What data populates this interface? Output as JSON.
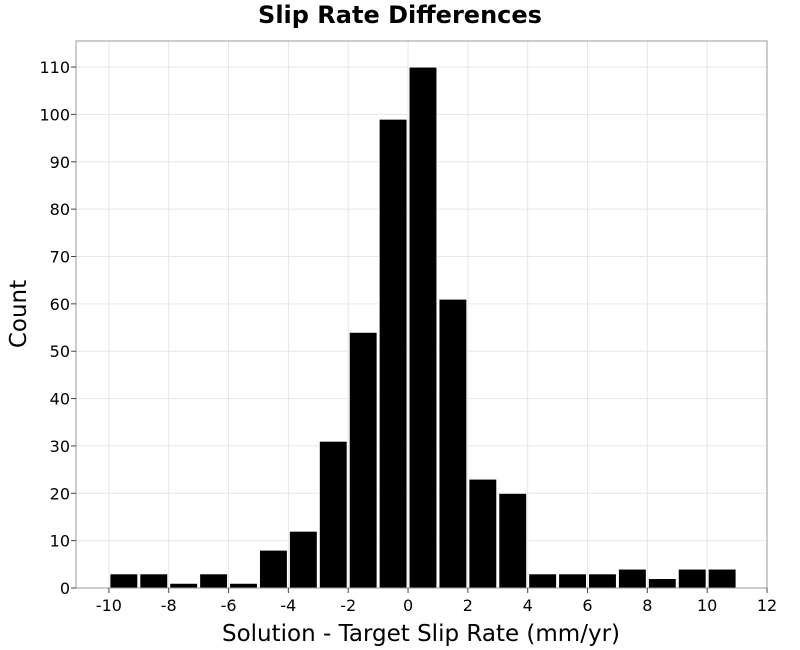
{
  "chart_data": {
    "type": "bar",
    "title": "Slip Rate Differences",
    "xlabel": "Solution - Target Slip Rate (mm/yr)",
    "ylabel": "Count",
    "bin_width": 1,
    "bins": [
      {
        "x_start": -10,
        "x_end": -9,
        "value": 3
      },
      {
        "x_start": -9,
        "x_end": -8,
        "value": 3
      },
      {
        "x_start": -8,
        "x_end": -7,
        "value": 1
      },
      {
        "x_start": -7,
        "x_end": -6,
        "value": 3
      },
      {
        "x_start": -6,
        "x_end": -5,
        "value": 1
      },
      {
        "x_start": -5,
        "x_end": -4,
        "value": 8
      },
      {
        "x_start": -4,
        "x_end": -3,
        "value": 12
      },
      {
        "x_start": -3,
        "x_end": -2,
        "value": 31
      },
      {
        "x_start": -2,
        "x_end": -1,
        "value": 54
      },
      {
        "x_start": -1,
        "x_end": 0,
        "value": 99
      },
      {
        "x_start": 0,
        "x_end": 1,
        "value": 110
      },
      {
        "x_start": 1,
        "x_end": 2,
        "value": 61
      },
      {
        "x_start": 2,
        "x_end": 3,
        "value": 23
      },
      {
        "x_start": 3,
        "x_end": 4,
        "value": 20
      },
      {
        "x_start": 4,
        "x_end": 5,
        "value": 3
      },
      {
        "x_start": 5,
        "x_end": 6,
        "value": 3
      },
      {
        "x_start": 6,
        "x_end": 7,
        "value": 3
      },
      {
        "x_start": 7,
        "x_end": 8,
        "value": 4
      },
      {
        "x_start": 8,
        "x_end": 9,
        "value": 2
      },
      {
        "x_start": 9,
        "x_end": 10,
        "value": 4
      },
      {
        "x_start": 10,
        "x_end": 11,
        "value": 4
      }
    ],
    "xlim": [
      -11.1,
      12
    ],
    "ylim": [
      0,
      115.5
    ],
    "x_ticks": [
      -10,
      -8,
      -6,
      -4,
      -2,
      0,
      2,
      4,
      6,
      8,
      10,
      12
    ],
    "y_ticks": [
      0,
      10,
      20,
      30,
      40,
      50,
      60,
      70,
      80,
      90,
      100,
      110
    ],
    "grid": true,
    "legend": "none",
    "bar_color": "#000000",
    "bar_edge_color": "#ffffff",
    "grid_color": "#e6e6e6"
  }
}
